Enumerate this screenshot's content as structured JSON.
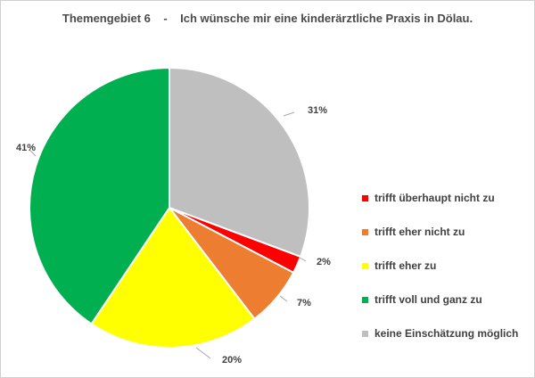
{
  "chart_data": {
    "type": "pie",
    "title": "Themengebiet 6    -    Ich wünsche mir eine kinderärztliche Praxis in Dölau.",
    "categories": [
      "keine Einschätzung möglich",
      "trifft überhaupt nicht zu",
      "trifft eher nicht zu",
      "trifft eher zu",
      "trifft voll und ganz zu"
    ],
    "values": [
      31,
      2,
      7,
      20,
      41
    ],
    "data_labels": [
      "31%",
      "2%",
      "7%",
      "20%",
      "41%"
    ],
    "colors": [
      "#bfbfbf",
      "#ff0000",
      "#ed7d31",
      "#ffff00",
      "#00b050"
    ],
    "legend": {
      "position": "right",
      "entries": [
        {
          "label": "trifft überhaupt nicht zu",
          "color": "#ff0000"
        },
        {
          "label": "trifft eher nicht zu",
          "color": "#ed7d31"
        },
        {
          "label": "trifft eher zu",
          "color": "#ffff00"
        },
        {
          "label": "trifft voll und ganz zu",
          "color": "#00b050"
        },
        {
          "label": "keine Einschätzung möglich",
          "color": "#bfbfbf"
        }
      ]
    }
  }
}
